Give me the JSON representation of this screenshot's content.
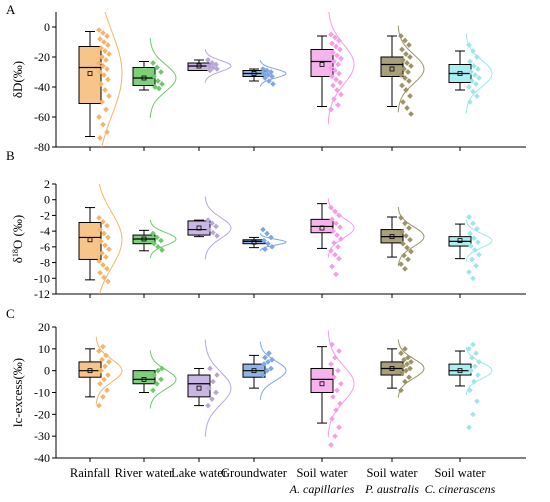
{
  "categories": [
    {
      "line1": "Rainfall",
      "line2": ""
    },
    {
      "line1": "River water",
      "line2": ""
    },
    {
      "line1": "Lake water",
      "line2": ""
    },
    {
      "line1": "Groundwater",
      "line2": ""
    },
    {
      "line1": "Soil water",
      "line2": "A. capillaries"
    },
    {
      "line1": "Soil water",
      "line2": "P. australis"
    },
    {
      "line1": "Soil water",
      "line2": "C. cinerascens"
    }
  ],
  "colors": {
    "fill": [
      "#f7c48a",
      "#7ecf7a",
      "#c9b6e3",
      "#8fb4e6",
      "#f7b3ec",
      "#a9a07b",
      "#a9eef0"
    ],
    "accent": [
      "#f5b46a",
      "#6ec96b",
      "#b8a6db",
      "#7fa8e2",
      "#f59de9",
      "#9c9368",
      "#9ee6ea"
    ]
  },
  "chart_data": [
    {
      "type": "box",
      "panel": "A",
      "ylabel": "δD(‰)",
      "ylim": [
        -80,
        10
      ],
      "yticks": [
        -80,
        -60,
        -40,
        -20,
        0
      ],
      "series": [
        {
          "name": "Rainfall",
          "min": -73,
          "q1": -51,
          "median": -27,
          "q3": -13,
          "max": -3,
          "mean": -31,
          "points": [
            -2,
            -4,
            -6,
            -8,
            -10,
            -12,
            -14,
            -16,
            -18,
            -20,
            -22,
            -24,
            -26,
            -28,
            -30,
            -32,
            -35,
            -38,
            -42,
            -46,
            -50,
            -55,
            -60,
            -65,
            -70,
            -74
          ]
        },
        {
          "name": "River water",
          "min": -42,
          "q1": -39,
          "median": -34,
          "q3": -27,
          "max": -23,
          "mean": -34,
          "points": [
            -24,
            -27,
            -30,
            -33,
            -36,
            -38,
            -40,
            -41
          ]
        },
        {
          "name": "Lake water",
          "min": -29,
          "q1": -29,
          "median": -26,
          "q3": -24,
          "max": -22,
          "mean": -26,
          "points": [
            -22,
            -24,
            -25,
            -26,
            -27,
            -28,
            -29
          ]
        },
        {
          "name": "Groundwater",
          "min": -36,
          "q1": -33,
          "median": -31,
          "q3": -29,
          "max": -28,
          "mean": -31,
          "points": [
            -28,
            -29,
            -30,
            -31,
            -32,
            -33,
            -34,
            -36,
            -38
          ]
        },
        {
          "name": "Soil water A. capillaries",
          "min": -53,
          "q1": -33,
          "median": -23,
          "q3": -15,
          "max": -6,
          "mean": -25,
          "points": [
            -5,
            -7,
            -9,
            -11,
            -13,
            -15,
            -17,
            -19,
            -21,
            -23,
            -25,
            -27,
            -29,
            -31,
            -33,
            -35,
            -37,
            -39,
            -42,
            -45,
            -48,
            -52,
            -55
          ]
        },
        {
          "name": "Soil water P. australis",
          "min": -53,
          "q1": -33,
          "median": -25,
          "q3": -20,
          "max": -6,
          "mean": -28,
          "points": [
            -6,
            -9,
            -12,
            -15,
            -18,
            -20,
            -22,
            -24,
            -26,
            -28,
            -30,
            -32,
            -34,
            -36,
            -39,
            -42,
            -46,
            -50,
            -54,
            -58
          ]
        },
        {
          "name": "Soil water C. cinerascens",
          "min": -42,
          "q1": -37,
          "median": -31,
          "q3": -25,
          "max": -16,
          "mean": -31,
          "points": [
            -12,
            -16,
            -20,
            -23,
            -26,
            -28,
            -30,
            -32,
            -34,
            -36,
            -38,
            -40,
            -43,
            -46,
            -50
          ]
        }
      ]
    },
    {
      "type": "box",
      "panel": "B",
      "ylabel": "δ18O (‰)",
      "ylim": [
        -12,
        2
      ],
      "yticks": [
        -12,
        -10,
        -8,
        -6,
        -4,
        -2,
        0,
        2
      ],
      "series": [
        {
          "name": "Rainfall",
          "min": -10.2,
          "q1": -7.6,
          "median": -4.8,
          "q3": -2.9,
          "max": -1.0,
          "mean": -5.1,
          "points": [
            -2.3,
            -2.8,
            -3.3,
            -3.8,
            -4.3,
            -4.8,
            -5.3,
            -5.8,
            -6.3,
            -6.8,
            -7.3,
            -7.8,
            -8.3,
            -8.8,
            -9.3,
            -9.9,
            -10.4
          ]
        },
        {
          "name": "River water",
          "min": -6.5,
          "q1": -5.6,
          "median": -5.0,
          "q3": -4.5,
          "max": -3.9,
          "mean": -5.0,
          "points": [
            -4.3,
            -4.8,
            -5.2,
            -5.6,
            -6.0,
            -6.4
          ]
        },
        {
          "name": "Lake water",
          "min": -4.7,
          "q1": -4.5,
          "median": -3.8,
          "q3": -2.7,
          "max": -2.6,
          "mean": -3.6,
          "points": [
            -2.6,
            -3.0,
            -3.4,
            -3.8,
            -4.2,
            -4.6
          ]
        },
        {
          "name": "Groundwater",
          "min": -6.1,
          "q1": -5.6,
          "median": -5.3,
          "q3": -5.1,
          "max": -4.8,
          "mean": -5.4,
          "points": [
            -3.8,
            -4.3,
            -4.8,
            -5.2,
            -5.6,
            -6.0,
            -6.3
          ]
        },
        {
          "name": "Soil water A. capillaries",
          "min": -6.2,
          "q1": -4.2,
          "median": -3.4,
          "q3": -2.5,
          "max": -0.5,
          "mean": -3.6,
          "points": [
            -1.0,
            -1.5,
            -2.0,
            -2.5,
            -3.0,
            -3.5,
            -4.0,
            -4.5,
            -5.0,
            -5.5,
            -6.0,
            -6.5,
            -7.0,
            -7.5,
            -8.5,
            -9.5
          ]
        },
        {
          "name": "Soil water P. australis",
          "min": -7.3,
          "q1": -5.5,
          "median": -4.7,
          "q3": -3.8,
          "max": -2.2,
          "mean": -4.7,
          "points": [
            -2.3,
            -3.0,
            -3.6,
            -4.1,
            -4.6,
            -5.1,
            -5.6,
            -6.1,
            -6.6,
            -7.1,
            -7.6,
            -8.2,
            -8.8
          ]
        },
        {
          "name": "Soil water C. cinerascens",
          "min": -7.5,
          "q1": -5.9,
          "median": -5.3,
          "q3": -4.7,
          "max": -3.1,
          "mean": -5.2,
          "points": [
            -2.2,
            -3.0,
            -3.7,
            -4.3,
            -4.9,
            -5.4,
            -5.9,
            -6.4,
            -7.0,
            -7.6,
            -8.4,
            -9.2,
            -10.0
          ]
        }
      ]
    },
    {
      "type": "box",
      "panel": "C",
      "ylabel": "lc-excess(‰)",
      "ylim": [
        -40,
        20
      ],
      "yticks": [
        -40,
        -30,
        -20,
        -10,
        0,
        10,
        20
      ],
      "series": [
        {
          "name": "Rainfall",
          "min": -12,
          "q1": -3,
          "median": 0,
          "q3": 4,
          "max": 10,
          "mean": 0,
          "points": [
            -16,
            -12,
            -9,
            -6,
            -4,
            -2,
            0,
            2,
            4,
            5,
            7,
            9,
            11
          ]
        },
        {
          "name": "River water",
          "min": -10,
          "q1": -6,
          "median": -4,
          "q3": 0,
          "max": 0,
          "mean": -4,
          "points": [
            -9,
            -6,
            -4,
            -2,
            0,
            1
          ]
        },
        {
          "name": "Lake water",
          "min": -16,
          "q1": -12,
          "median": -6,
          "q3": -2,
          "max": 1,
          "mean": -8,
          "points": [
            -16,
            -13,
            -10,
            -8,
            -5,
            -2,
            1
          ]
        },
        {
          "name": "Groundwater",
          "min": -8,
          "q1": -3,
          "median": 0,
          "q3": 3,
          "max": 7,
          "mean": 0,
          "points": [
            -2,
            0,
            1,
            3,
            4,
            5,
            6,
            8
          ]
        },
        {
          "name": "Soil water A. capillaries",
          "min": -24,
          "q1": -10,
          "median": -4,
          "q3": 1,
          "max": 11,
          "mean": -6,
          "points": [
            -34,
            -30,
            -26,
            -22,
            -18,
            -15,
            -12,
            -9,
            -6,
            -3,
            0,
            3,
            6,
            9,
            12
          ]
        },
        {
          "name": "Soil water P. australis",
          "min": -8,
          "q1": -2,
          "median": 1,
          "q3": 4,
          "max": 10,
          "mean": 1,
          "points": [
            -9,
            -5,
            -3,
            -1,
            0,
            1,
            2,
            3,
            4,
            5,
            6,
            8,
            10
          ]
        },
        {
          "name": "Soil water C. cinerascens",
          "min": -7,
          "q1": -2,
          "median": 0,
          "q3": 3,
          "max": 9,
          "mean": 0,
          "points": [
            -26,
            -20,
            -14,
            -9,
            -5,
            -2,
            0,
            2,
            4,
            6,
            8,
            10,
            12
          ]
        }
      ]
    }
  ]
}
